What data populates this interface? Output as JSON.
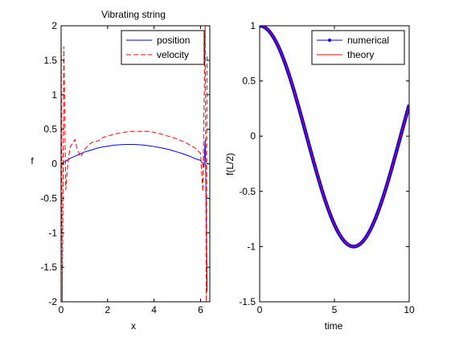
{
  "chart_data": [
    {
      "type": "line",
      "title": "Vibrating string",
      "xlabel": "x",
      "ylabel": "f",
      "xlim": [
        0,
        6.4
      ],
      "ylim": [
        -2,
        2
      ],
      "xticks": [
        "0",
        "2",
        "4",
        "6"
      ],
      "yticks": [
        "-2",
        "-1.5",
        "-1",
        "-0.5",
        "0",
        "0.5",
        "1",
        "1.5",
        "2"
      ],
      "grid": false,
      "legend_position": "top-right",
      "series": [
        {
          "name": "position",
          "color": "#0000ff",
          "style": "solid",
          "x": [
            0,
            0.2,
            0.4,
            0.6,
            0.8,
            1.0,
            1.2,
            1.4,
            1.6,
            1.8,
            2.0,
            2.2,
            2.4,
            2.6,
            2.8,
            3.0,
            3.2,
            3.4,
            3.6,
            3.8,
            4.0,
            4.2,
            4.4,
            4.6,
            4.8,
            5.0,
            5.2,
            5.4,
            5.6,
            5.8,
            6.0,
            6.1,
            6.15,
            6.2,
            6.25,
            6.28
          ],
          "y": [
            0,
            0.04,
            0.08,
            0.11,
            0.14,
            0.17,
            0.19,
            0.21,
            0.23,
            0.245,
            0.255,
            0.265,
            0.272,
            0.277,
            0.28,
            0.28,
            0.279,
            0.275,
            0.268,
            0.26,
            0.25,
            0.238,
            0.225,
            0.21,
            0.19,
            0.17,
            0.15,
            0.125,
            0.1,
            0.07,
            0.05,
            0.0,
            -0.05,
            0.35,
            -0.7,
            -1.85
          ]
        },
        {
          "name": "velocity",
          "color": "#ff0000",
          "style": "dashed",
          "x": [
            0,
            0.05,
            0.12,
            0.2,
            0.3,
            0.4,
            0.5,
            0.6,
            0.7,
            0.85,
            1.0,
            1.2,
            1.4,
            1.6,
            1.8,
            2.0,
            2.3,
            2.6,
            3.0,
            3.4,
            3.8,
            4.2,
            4.6,
            5.0,
            5.4,
            5.8,
            6.0,
            6.1,
            6.2,
            6.25,
            6.28
          ],
          "y": [
            2.0,
            -2.0,
            1.7,
            -0.38,
            0.05,
            0.25,
            0.3,
            0.35,
            0.2,
            0.1,
            0.2,
            0.28,
            0.32,
            0.33,
            0.38,
            0.4,
            0.43,
            0.45,
            0.47,
            0.47,
            0.47,
            0.44,
            0.4,
            0.36,
            0.3,
            0.22,
            0.15,
            -0.4,
            2.0,
            -2.0,
            1.6
          ]
        }
      ]
    },
    {
      "type": "line",
      "title": "",
      "xlabel": "time",
      "ylabel": "f(L/2)",
      "xlim": [
        0,
        10
      ],
      "ylim": [
        -1.5,
        1
      ],
      "xticks": [
        "0",
        "5",
        "10"
      ],
      "yticks": [
        "-1.5",
        "-1",
        "-0.5",
        "0",
        "0.5",
        "1"
      ],
      "grid": false,
      "legend_position": "top-right",
      "series": [
        {
          "name": "numerical",
          "color": "#0000ff",
          "style": "solid-with-point-markers",
          "x_start": 0,
          "x_end": 10,
          "function": "cos(t/2)"
        },
        {
          "name": "theory",
          "color": "#ff0000",
          "style": "solid",
          "x_start": 0,
          "x_end": 10,
          "function": "cos(t/2)"
        }
      ]
    }
  ]
}
